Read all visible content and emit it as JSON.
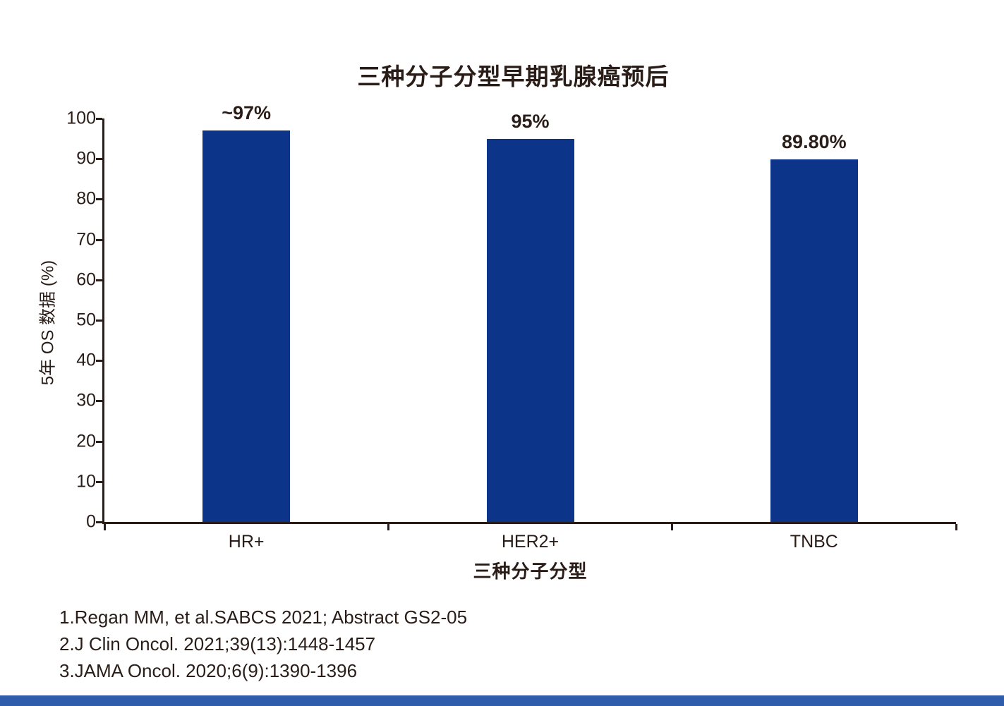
{
  "chart_data": {
    "type": "bar",
    "title": "三种分子分型早期乳腺癌预后",
    "categories": [
      "HR+",
      "HER2+",
      "TNBC"
    ],
    "values": [
      97,
      95,
      89.8
    ],
    "value_labels": [
      "~97%",
      "95%",
      "89.80%"
    ],
    "xlabel": "三种分子分型",
    "ylabel": "5年 OS 数据 (%)",
    "ylim": [
      0,
      100
    ],
    "yticks": [
      0,
      10,
      20,
      30,
      40,
      50,
      60,
      70,
      80,
      90,
      100
    ],
    "grid": false,
    "legend": "none",
    "bar_color": "#0c3589"
  },
  "footnotes": [
    "1.Regan MM, et al.SABCS 2021; Abstract GS2-05",
    "2.J Clin Oncol. 2021;39(13):1448-1457",
    "3.JAMA Oncol. 2020;6(9):1390-1396"
  ],
  "colors": {
    "bar": "#0c3589",
    "text": "#2a1d18",
    "axis": "#2a1d18",
    "accent_strip": "#2f5cab",
    "background": "#ffffff"
  }
}
